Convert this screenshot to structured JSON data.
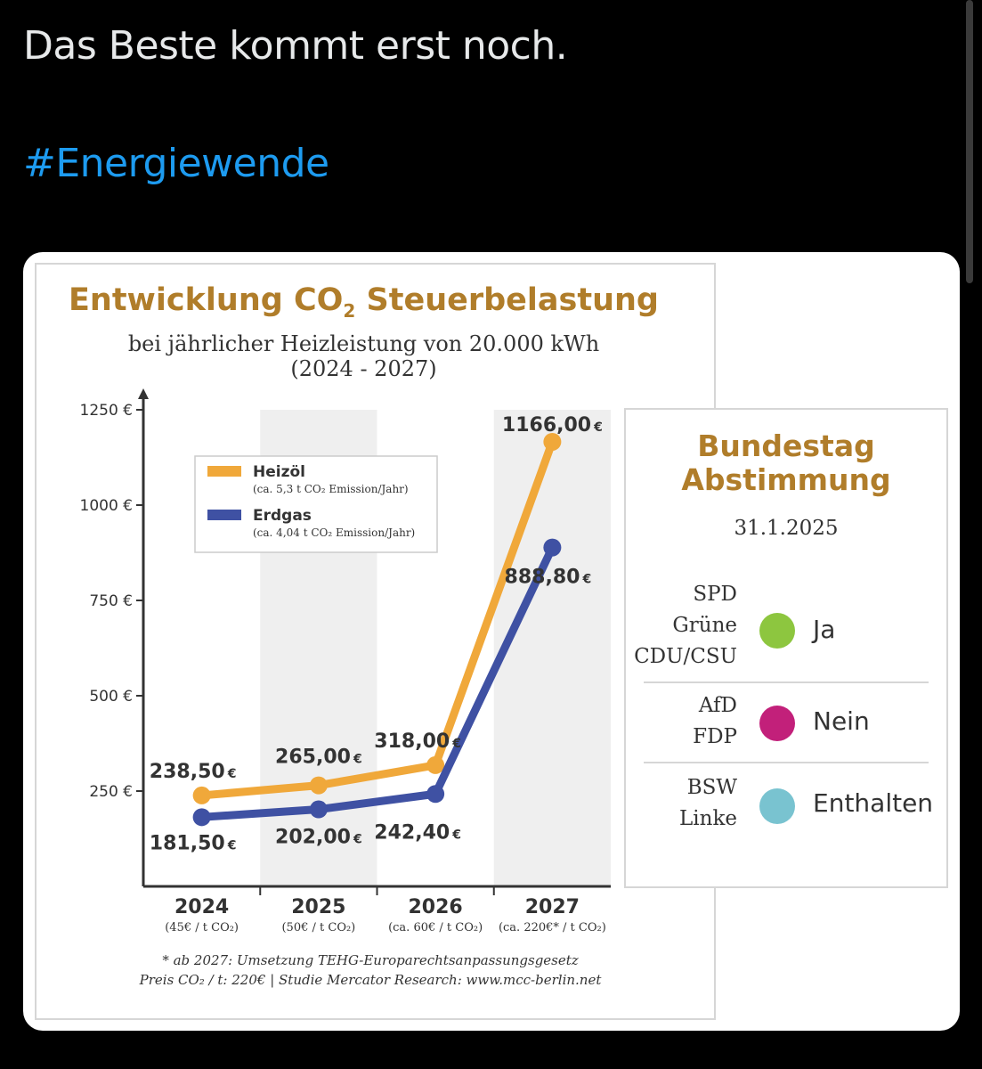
{
  "tweet": {
    "text": "Das Beste kommt erst noch.",
    "hashtag": "#Energiewende"
  },
  "chart_data": {
    "type": "line",
    "title_main": "Entwicklung CO",
    "title_sub": "2",
    "title_rest": " Steuerbelastung",
    "subtitle_line1": "bei jährlicher Heizleistung von 20.000 kWh",
    "subtitle_line2": "(2024 - 2027)",
    "ylim": [
      0,
      1250
    ],
    "y_ticks": [
      {
        "value": 250,
        "label": "250 €"
      },
      {
        "value": 500,
        "label": "500 €"
      },
      {
        "value": 750,
        "label": "750 €"
      },
      {
        "value": 1000,
        "label": "1000 €"
      },
      {
        "value": 1250,
        "label": "1250 €"
      }
    ],
    "categories": [
      "2024",
      "2025",
      "2026",
      "2027"
    ],
    "category_notes": [
      "(45€ / t CO₂)",
      "(50€ / t CO₂)",
      "(ca. 60€ / t CO₂)",
      "(ca. 220€* / t CO₂)"
    ],
    "series": [
      {
        "name": "Heizöl",
        "note": "(ca. 5,3 t CO₂ Emission/Jahr)",
        "color": "#f0a83a",
        "values": [
          238.5,
          265.0,
          318.0,
          1166.0
        ],
        "labels": [
          "238,50",
          "265,00",
          "318,00",
          "1166,00"
        ]
      },
      {
        "name": "Erdgas",
        "note": "(ca. 4,04 t CO₂ Emission/Jahr)",
        "color": "#3f51a3",
        "values": [
          181.5,
          202.0,
          242.4,
          888.8
        ],
        "labels": [
          "181,50",
          "202,00",
          "242,40",
          "888,80"
        ]
      }
    ],
    "currency": "€",
    "footnote_line1": "* ab 2027: Umsetzung  TEHG-Europarechtsanpassungsgesetz",
    "footnote_line2": "Preis CO₂ / t: 220€  |  Studie Mercator Research: www.mcc-berlin.net"
  },
  "vote": {
    "title_line1": "Bundestag",
    "title_line2": "Abstimmung",
    "date": "31.1.2025",
    "groups": [
      {
        "parties": [
          "SPD",
          "Grüne",
          "CDU/CSU"
        ],
        "result": "Ja",
        "color": "#8dc63f"
      },
      {
        "parties": [
          "AfD",
          "FDP"
        ],
        "result": "Nein",
        "color": "#c2207a"
      },
      {
        "parties": [
          "BSW",
          "Linke"
        ],
        "result": "Enthalten",
        "color": "#79c3d0"
      }
    ]
  }
}
